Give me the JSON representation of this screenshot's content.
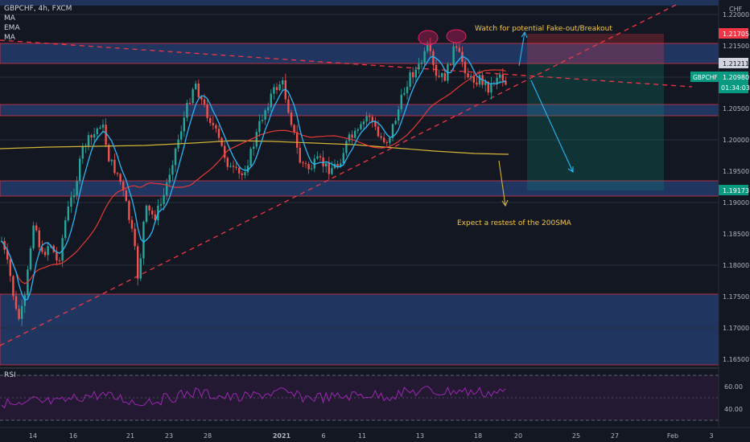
{
  "header": {
    "symbol_line": "GBPCHF, 4h, FXCM",
    "indicators": [
      "MA",
      "EMA",
      "MA"
    ],
    "currency": "CHF"
  },
  "price_axis": {
    "ticks": [
      "1.22000",
      "1.21500",
      "1.21000",
      "1.20500",
      "1.20000",
      "1.19500",
      "1.19000",
      "1.18500",
      "1.18000",
      "1.17500",
      "1.17000",
      "1.16500"
    ],
    "tags": {
      "target_top": "1.21705",
      "entry": "1.21211",
      "symbol": "GBPCHF",
      "current": "1.20980",
      "countdown": "01:34:03",
      "stop_bottom": "1.19173"
    }
  },
  "annotations": {
    "fakeout": "Watch for potential Fake-out/Breakout",
    "retest": "Expect a restest of the 200SMA"
  },
  "rsi": {
    "label": "RSI",
    "ticks": [
      "60.00",
      "40.00"
    ]
  },
  "time_axis": [
    "14",
    "16",
    "21",
    "23",
    "28",
    "2021",
    "6",
    "11",
    "13",
    "18",
    "20",
    "25",
    "27",
    "Feb",
    "3"
  ],
  "colors": {
    "bg": "#131722",
    "up": "#26a69a",
    "down": "#ef5350",
    "ema": "#29b6f6",
    "sma50": "#e53935",
    "sma200": "#d4b336",
    "zone": "#2a4a8a",
    "rsi": "#9c27b0",
    "target_tag": "#f23645",
    "current_tag": "#089981"
  }
}
